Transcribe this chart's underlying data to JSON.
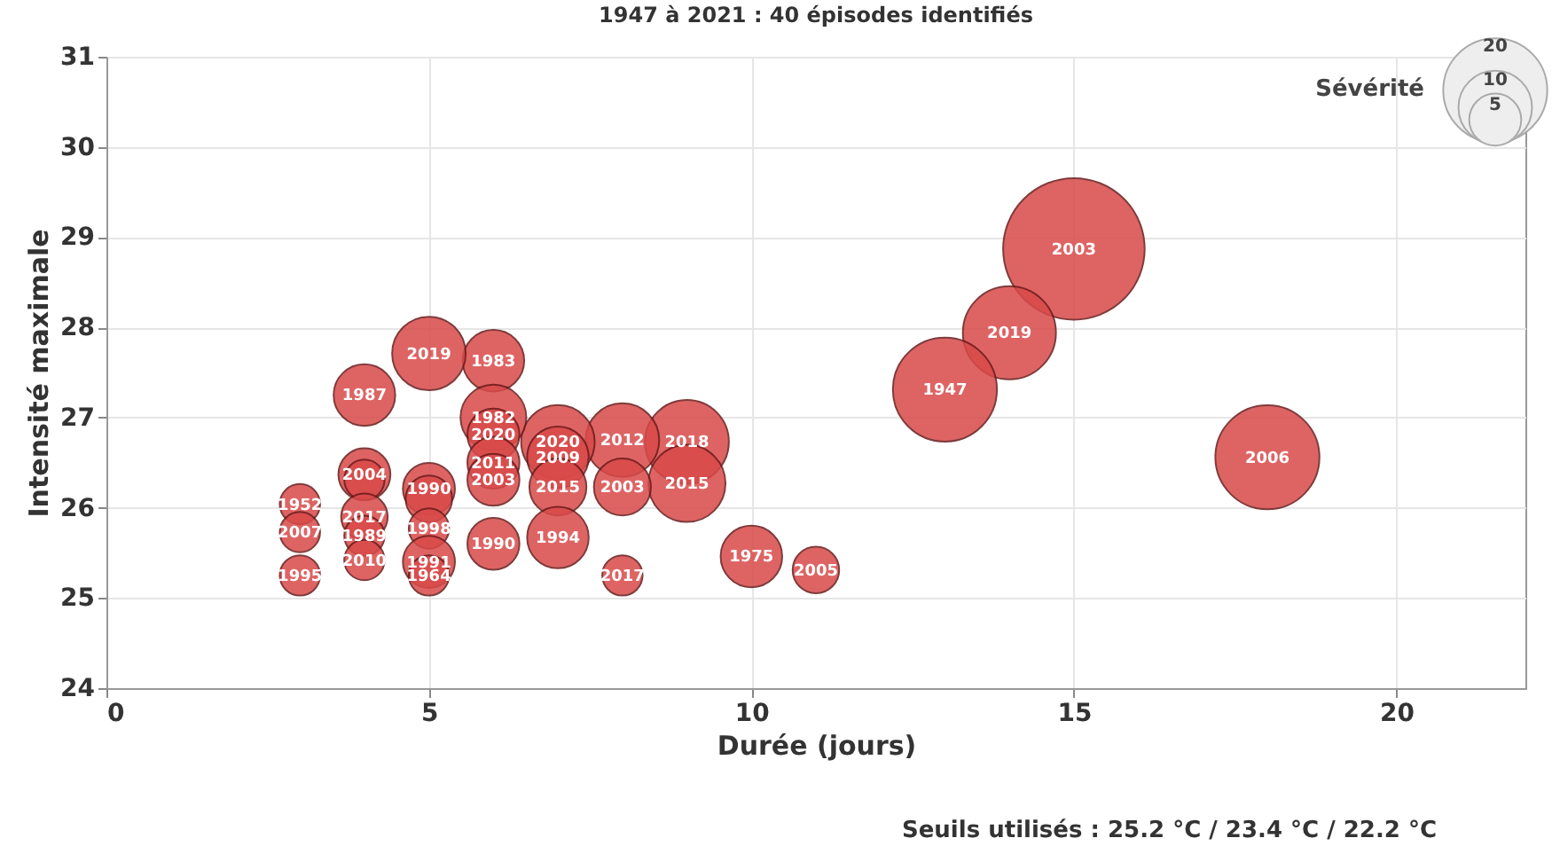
{
  "chart_data": {
    "type": "bubble",
    "title": "1947 à 2021 : 40 épisodes identifiés",
    "xlabel": "Durée (jours)",
    "ylabel": "Intensité maximale",
    "legend_title": "Sévérité",
    "size_legend": [
      5,
      10,
      20
    ],
    "grid": true,
    "xlim": [
      0,
      22
    ],
    "xticks": [
      0,
      5,
      10,
      15,
      20
    ],
    "ylim": [
      24,
      31
    ],
    "yticks": [
      24,
      25,
      26,
      27,
      28,
      29,
      30,
      31
    ],
    "series": [
      {
        "color": "#d94a4a",
        "x": [
          15,
          14,
          13,
          18,
          10,
          11,
          8,
          9,
          9,
          8,
          8,
          7,
          7,
          7,
          7,
          6,
          6,
          6,
          6,
          6,
          6,
          5,
          5,
          5,
          5,
          5,
          5,
          4,
          4,
          4,
          4,
          4,
          4,
          3,
          3,
          3
        ],
        "values": [
          28.87,
          27.94,
          27.31,
          26.56,
          25.46,
          25.31,
          25.25,
          26.73,
          26.27,
          26.75,
          26.23,
          26.73,
          26.56,
          26.23,
          25.67,
          25.6,
          27.63,
          27.0,
          26.81,
          26.5,
          26.31,
          27.71,
          26.21,
          26.1,
          25.77,
          25.4,
          25.25,
          27.25,
          26.37,
          26.31,
          25.9,
          25.69,
          25.42,
          26.04,
          25.73,
          25.25
        ],
        "sizes": [
          37,
          16,
          20,
          20,
          7,
          4,
          3,
          13,
          11,
          10,
          6,
          10,
          7,
          6,
          7,
          5,
          7,
          8,
          5,
          5,
          5,
          10,
          5,
          4,
          3,
          5,
          3,
          7,
          5,
          3,
          4,
          3,
          3,
          3,
          3,
          3
        ]
      }
    ],
    "annotations": [
      {
        "text": "2003",
        "x": 15,
        "y": 28.87
      },
      {
        "text": "2019",
        "x": 14,
        "y": 27.94
      },
      {
        "text": "1947",
        "x": 13,
        "y": 27.31
      },
      {
        "text": "2006",
        "x": 18,
        "y": 26.56
      },
      {
        "text": "1975",
        "x": 10,
        "y": 25.46
      },
      {
        "text": "2005",
        "x": 11,
        "y": 25.31
      },
      {
        "text": "2017",
        "x": 8,
        "y": 25.25
      },
      {
        "text": "2018",
        "x": 9,
        "y": 26.73
      },
      {
        "text": "2015",
        "x": 9,
        "y": 26.27
      },
      {
        "text": "2012",
        "x": 8,
        "y": 26.75
      },
      {
        "text": "2003",
        "x": 8,
        "y": 26.23
      },
      {
        "text": "2020",
        "x": 7,
        "y": 26.73
      },
      {
        "text": "2009",
        "x": 7,
        "y": 26.56
      },
      {
        "text": "2015",
        "x": 7,
        "y": 26.23
      },
      {
        "text": "1994",
        "x": 7,
        "y": 25.67
      },
      {
        "text": "1990",
        "x": 6,
        "y": 25.6
      },
      {
        "text": "1983",
        "x": 6,
        "y": 27.63
      },
      {
        "text": "1982",
        "x": 6,
        "y": 27.0
      },
      {
        "text": "2020",
        "x": 6,
        "y": 26.81
      },
      {
        "text": "2011",
        "x": 6,
        "y": 26.5
      },
      {
        "text": "2003",
        "x": 6,
        "y": 26.31
      },
      {
        "text": "2019",
        "x": 5,
        "y": 27.71
      },
      {
        "text": "1990",
        "x": 5,
        "y": 26.21
      },
      {
        "text": "1998",
        "x": 5,
        "y": 25.77
      },
      {
        "text": "1991",
        "x": 5,
        "y": 25.4
      },
      {
        "text": "1964",
        "x": 5,
        "y": 25.25
      },
      {
        "text": "1987",
        "x": 4,
        "y": 27.25
      },
      {
        "text": "2004",
        "x": 4,
        "y": 26.37
      },
      {
        "text": "2017",
        "x": 4,
        "y": 25.9
      },
      {
        "text": "1989",
        "x": 4,
        "y": 25.69
      },
      {
        "text": "2010",
        "x": 4,
        "y": 25.42
      },
      {
        "text": "1952",
        "x": 3,
        "y": 26.04
      },
      {
        "text": "2007",
        "x": 3,
        "y": 25.73
      },
      {
        "text": "1995",
        "x": 3,
        "y": 25.25
      },
      "Seuils utilisés : 25.2 °C / 23.4 °C / 22.2 °C"
    ]
  }
}
